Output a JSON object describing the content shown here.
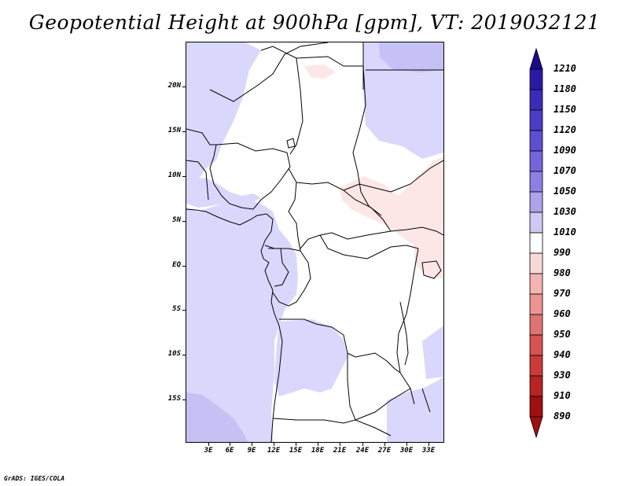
{
  "title": "Geopotential Height at 900hPa [gpm], VT: 2019032121",
  "credit": "GrADS: IGES/COLA",
  "map": {
    "lat_labels": [
      "20N",
      "15N",
      "10N",
      "5N",
      "EQ",
      "5S",
      "10S",
      "15S"
    ],
    "lon_labels": [
      "3E",
      "6E",
      "9E",
      "12E",
      "15E",
      "18E",
      "21E",
      "24E",
      "27E",
      "30E",
      "33E"
    ]
  },
  "colorbar": {
    "levels": [
      "1210",
      "1180",
      "1150",
      "1120",
      "1090",
      "1070",
      "1050",
      "1030",
      "1010",
      "990",
      "980",
      "970",
      "960",
      "950",
      "940",
      "930",
      "910",
      "890"
    ],
    "colors": [
      "#1a0a8c",
      "#2a1aa6",
      "#3b2bb8",
      "#4c3cc6",
      "#5d4ed2",
      "#7565dc",
      "#8e7fe4",
      "#aea2ec",
      "#cfc9f6",
      "#ffffff",
      "#fbd8d8",
      "#f4b2b2",
      "#ec9494",
      "#e17272",
      "#d85252",
      "#cc3a3a",
      "#b92323",
      "#a01010"
    ]
  },
  "field_colors": {
    "land_default": "#ffffff",
    "high_light": "#d9d7fb",
    "high_mid": "#c5c1f4",
    "low_light": "#fde6e6"
  }
}
